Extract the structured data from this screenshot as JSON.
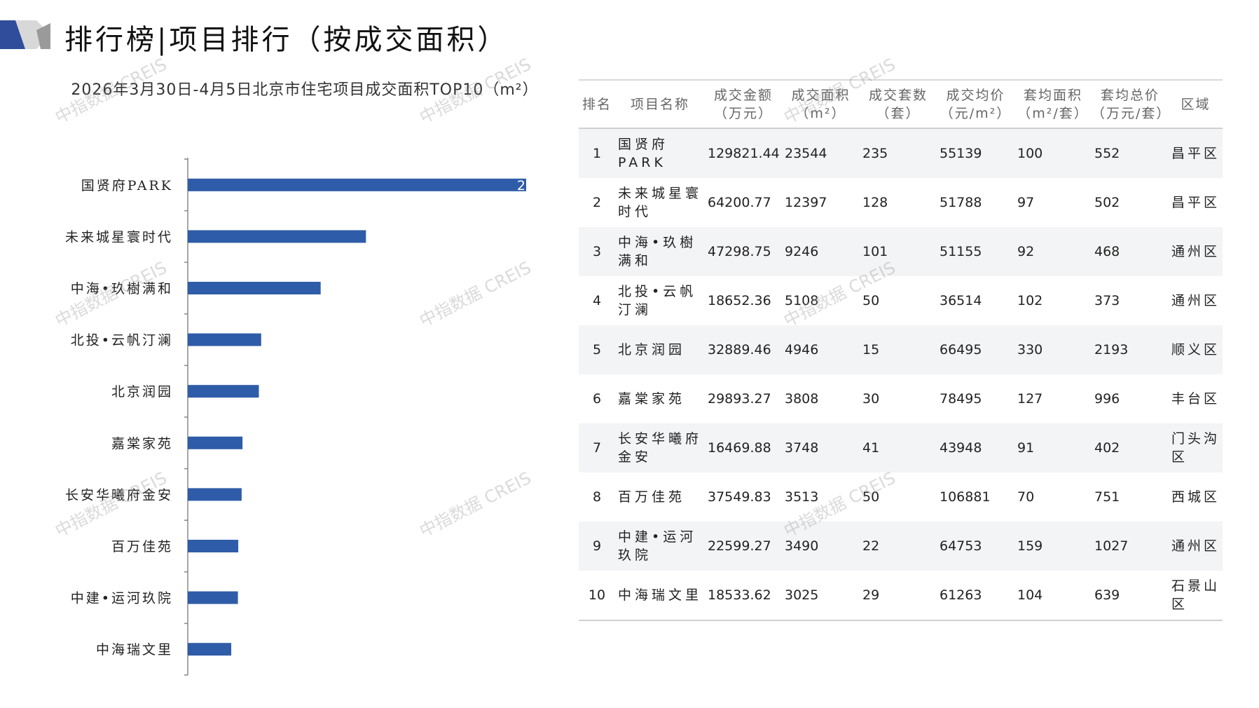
{
  "header": {
    "title": "排行榜|项目排行（按成交面积）"
  },
  "watermark": "中指数据 CREIS",
  "colors": {
    "bar": "#2f5ca8",
    "logo_blue": "#2f4d9b",
    "logo_grey": "#a0a0a0"
  },
  "chart_data": {
    "type": "bar",
    "orientation": "horizontal",
    "title": "2026年3月30日-4月5日北京市住宅项目成交面积TOP10（m²）",
    "categories": [
      "国贤府PARK",
      "未来城星寰时代",
      "中海•玖樹满和",
      "北投•云帆汀澜",
      "北京润园",
      "嘉棠家苑",
      "长安华曦府金安",
      "百万佳苑",
      "中建•运河玖院",
      "中海瑞文里"
    ],
    "values": [
      23544,
      12397,
      9246,
      5108,
      4946,
      3808,
      3748,
      3513,
      3490,
      3025
    ],
    "visible_data_label": "2",
    "grid": false
  },
  "table": {
    "headers": [
      {
        "l1": "排名",
        "l2": ""
      },
      {
        "l1": "项目名称",
        "l2": ""
      },
      {
        "l1": "成交金额",
        "l2": "（万元）"
      },
      {
        "l1": "成交面积",
        "l2": "（m²）"
      },
      {
        "l1": "成交套数",
        "l2": "（套）"
      },
      {
        "l1": "成交均价",
        "l2": "（元/m²）"
      },
      {
        "l1": "套均面积",
        "l2": "（m²/套）"
      },
      {
        "l1": "套均总价",
        "l2": "（万元/套）"
      },
      {
        "l1": "区域",
        "l2": ""
      }
    ],
    "rows": [
      [
        "1",
        "国贤府PARK",
        "129821.44",
        "23544",
        "235",
        "55139",
        "100",
        "552",
        "昌平区"
      ],
      [
        "2",
        "未来城星寰时代",
        "64200.77",
        "12397",
        "128",
        "51788",
        "97",
        "502",
        "昌平区"
      ],
      [
        "3",
        "中海•玖樹满和",
        "47298.75",
        "9246",
        "101",
        "51155",
        "92",
        "468",
        "通州区"
      ],
      [
        "4",
        "北投•云帆汀澜",
        "18652.36",
        "5108",
        "50",
        "36514",
        "102",
        "373",
        "通州区"
      ],
      [
        "5",
        "北京润园",
        "32889.46",
        "4946",
        "15",
        "66495",
        "330",
        "2193",
        "顺义区"
      ],
      [
        "6",
        "嘉棠家苑",
        "29893.27",
        "3808",
        "30",
        "78495",
        "127",
        "996",
        "丰台区"
      ],
      [
        "7",
        "长安华曦府金安",
        "16469.88",
        "3748",
        "41",
        "43948",
        "91",
        "402",
        "门头沟区"
      ],
      [
        "8",
        "百万佳苑",
        "37549.83",
        "3513",
        "50",
        "106881",
        "70",
        "751",
        "西城区"
      ],
      [
        "9",
        "中建•运河玖院",
        "22599.27",
        "3490",
        "22",
        "64753",
        "159",
        "1027",
        "通州区"
      ],
      [
        "10",
        "中海瑞文里",
        "18533.62",
        "3025",
        "29",
        "61263",
        "104",
        "639",
        "石景山区"
      ]
    ]
  }
}
